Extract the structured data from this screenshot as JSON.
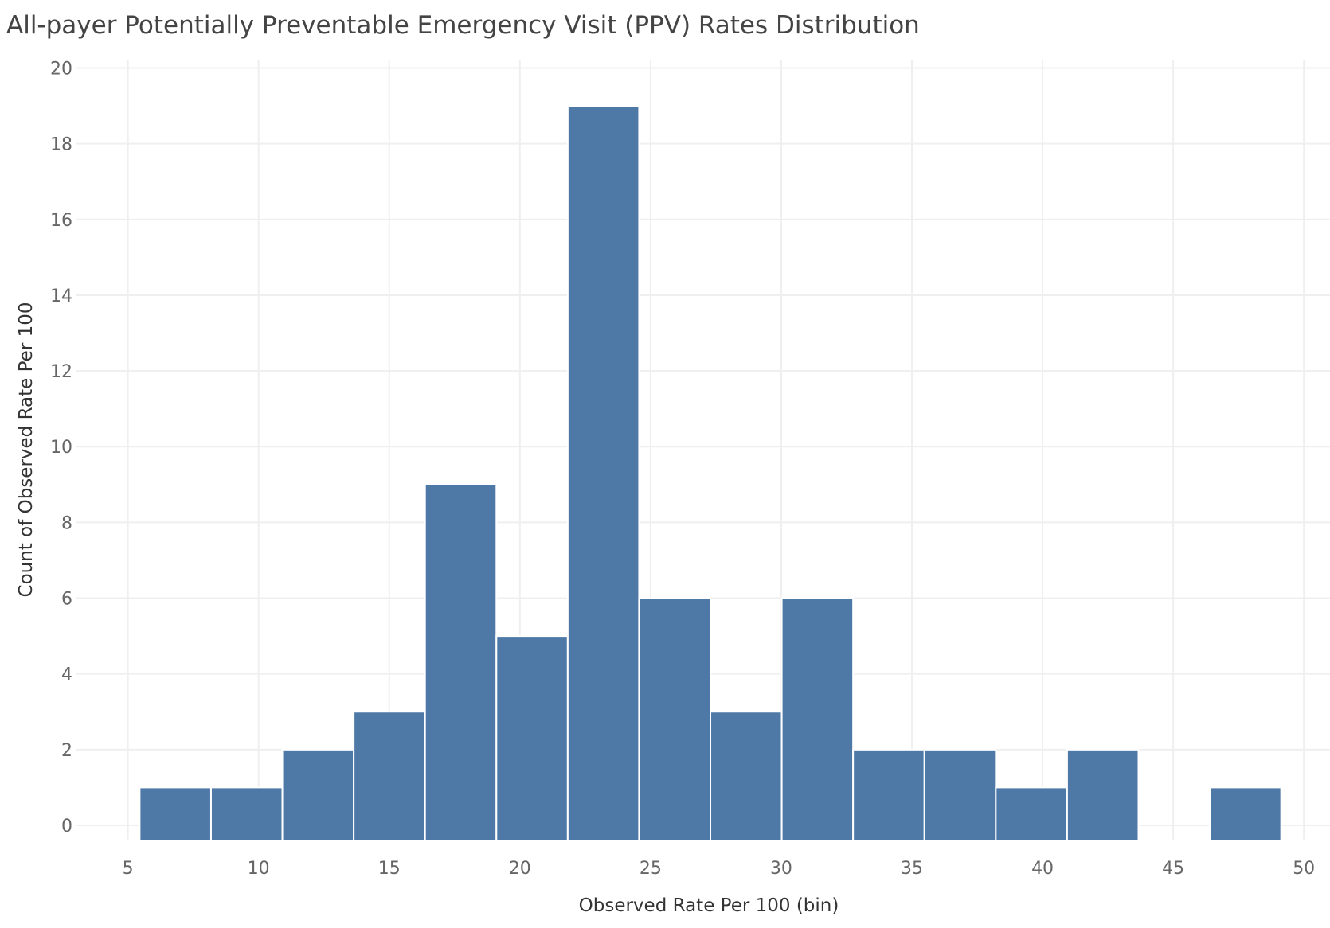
{
  "chart_data": {
    "type": "bar",
    "subtype": "histogram",
    "title": "All-payer Potentially Preventable Emergency Visit (PPV) Rates Distribution",
    "xlabel": "Observed Rate Per 100 (bin)",
    "ylabel": "Count of Observed Rate Per 100",
    "xlim": [
      3,
      51
    ],
    "ylim": [
      -0.4,
      20.2
    ],
    "x_ticks": [
      5,
      10,
      15,
      20,
      25,
      30,
      35,
      40,
      45,
      50
    ],
    "y_ticks": [
      0,
      2,
      4,
      6,
      8,
      10,
      12,
      14,
      16,
      18,
      20
    ],
    "bin_width": 2.73,
    "bins": [
      {
        "start": 5.45,
        "count": 1
      },
      {
        "start": 8.18,
        "count": 1
      },
      {
        "start": 10.91,
        "count": 2
      },
      {
        "start": 13.64,
        "count": 3
      },
      {
        "start": 16.37,
        "count": 9
      },
      {
        "start": 19.1,
        "count": 5
      },
      {
        "start": 21.83,
        "count": 19
      },
      {
        "start": 24.56,
        "count": 6
      },
      {
        "start": 27.29,
        "count": 3
      },
      {
        "start": 30.02,
        "count": 6
      },
      {
        "start": 32.75,
        "count": 2
      },
      {
        "start": 35.48,
        "count": 2
      },
      {
        "start": 38.21,
        "count": 1
      },
      {
        "start": 40.94,
        "count": 2
      },
      {
        "start": 46.4,
        "count": 1
      }
    ],
    "grid": true,
    "bar_color": "#4e79a7",
    "grid_color": "#efefef"
  }
}
